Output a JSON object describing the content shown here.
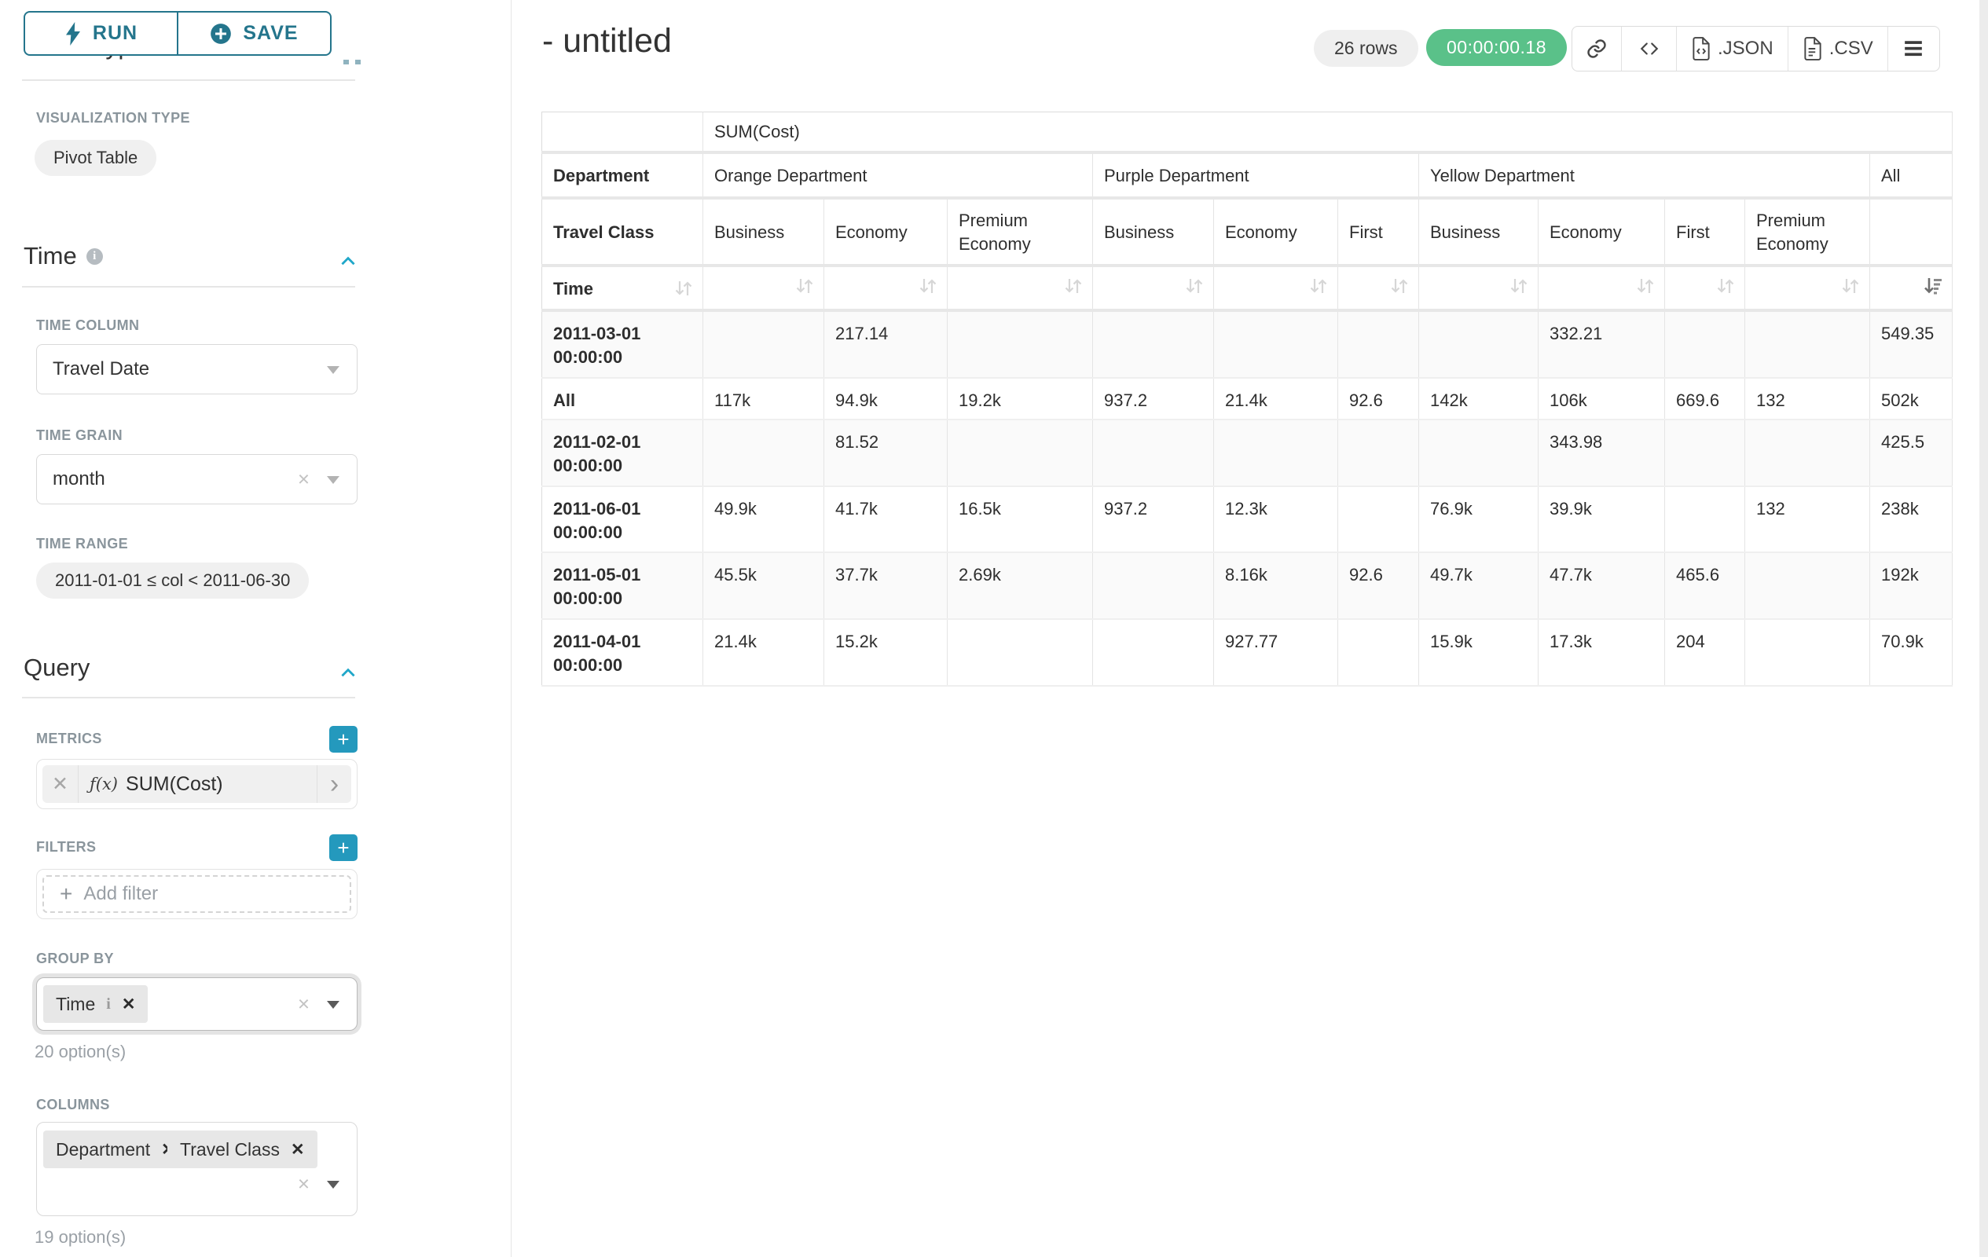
{
  "colors": {
    "accent_teal": "#20a7c9",
    "button_teal": "#24758c",
    "success_green": "#5ac189"
  },
  "left_panel": {
    "run_label": "RUN",
    "save_label": "SAVE",
    "chart_type_heading": "Chart Type",
    "visualization_type_label": "VISUALIZATION TYPE",
    "visualization_type_value": "Pivot Table",
    "time_section": {
      "title": "Time",
      "time_column_label": "TIME COLUMN",
      "time_column_value": "Travel Date",
      "time_grain_label": "TIME GRAIN",
      "time_grain_value": "month",
      "time_range_label": "TIME RANGE",
      "time_range_value": "2011-01-01 ≤ col < 2011-06-30"
    },
    "query_section": {
      "title": "Query",
      "metrics_label": "METRICS",
      "metric_fx": "ƒ(x)",
      "metric_value": "SUM(Cost)",
      "filters_label": "FILTERS",
      "add_filter_label": "Add filter",
      "group_by_label": "GROUP BY",
      "group_by_tags": [
        "Time"
      ],
      "group_by_hint": "20 option(s)",
      "columns_label": "COLUMNS",
      "columns_tags": [
        "Department",
        "Travel Class"
      ],
      "columns_hint": "19 option(s)"
    }
  },
  "header": {
    "title": "- untitled",
    "rows_badge": "26 rows",
    "timer": "00:00:00.18",
    "toolbar": {
      "json_label": ".JSON",
      "csv_label": ".CSV",
      "icons": [
        "link-icon",
        "code-icon",
        "file-json-icon",
        "file-csv-icon",
        "menu-icon"
      ]
    }
  },
  "pivot_table": {
    "metric_header": "SUM(Cost)",
    "corner_labels": {
      "row2": "Department",
      "row3": "Travel Class",
      "row4": "Time"
    },
    "column_groups": [
      {
        "label": "Orange Department",
        "columns": [
          "Business",
          "Economy",
          "Premium Economy"
        ]
      },
      {
        "label": "Purple Department",
        "columns": [
          "Business",
          "Economy",
          "First"
        ]
      },
      {
        "label": "Yellow Department",
        "columns": [
          "Business",
          "Economy",
          "First",
          "Premium Economy"
        ]
      },
      {
        "label": "All",
        "columns": [
          ""
        ]
      }
    ],
    "rows": [
      {
        "label": "2011-03-01 00:00:00",
        "values": [
          "",
          "217.14",
          "",
          "",
          "",
          "",
          "",
          "332.21",
          "",
          "",
          "549.35"
        ]
      },
      {
        "label": "All",
        "values": [
          "117k",
          "94.9k",
          "19.2k",
          "937.2",
          "21.4k",
          "92.6",
          "142k",
          "106k",
          "669.6",
          "132",
          "502k"
        ]
      },
      {
        "label": "2011-02-01 00:00:00",
        "values": [
          "",
          "81.52",
          "",
          "",
          "",
          "",
          "",
          "343.98",
          "",
          "",
          "425.5"
        ]
      },
      {
        "label": "2011-06-01 00:00:00",
        "values": [
          "49.9k",
          "41.7k",
          "16.5k",
          "937.2",
          "12.3k",
          "",
          "76.9k",
          "39.9k",
          "",
          "132",
          "238k"
        ]
      },
      {
        "label": "2011-05-01 00:00:00",
        "values": [
          "45.5k",
          "37.7k",
          "2.69k",
          "",
          "8.16k",
          "92.6",
          "49.7k",
          "47.7k",
          "465.6",
          "",
          "192k"
        ]
      },
      {
        "label": "2011-04-01 00:00:00",
        "values": [
          "21.4k",
          "15.2k",
          "",
          "",
          "927.77",
          "",
          "15.9k",
          "17.3k",
          "204",
          "",
          "70.9k"
        ]
      }
    ]
  }
}
